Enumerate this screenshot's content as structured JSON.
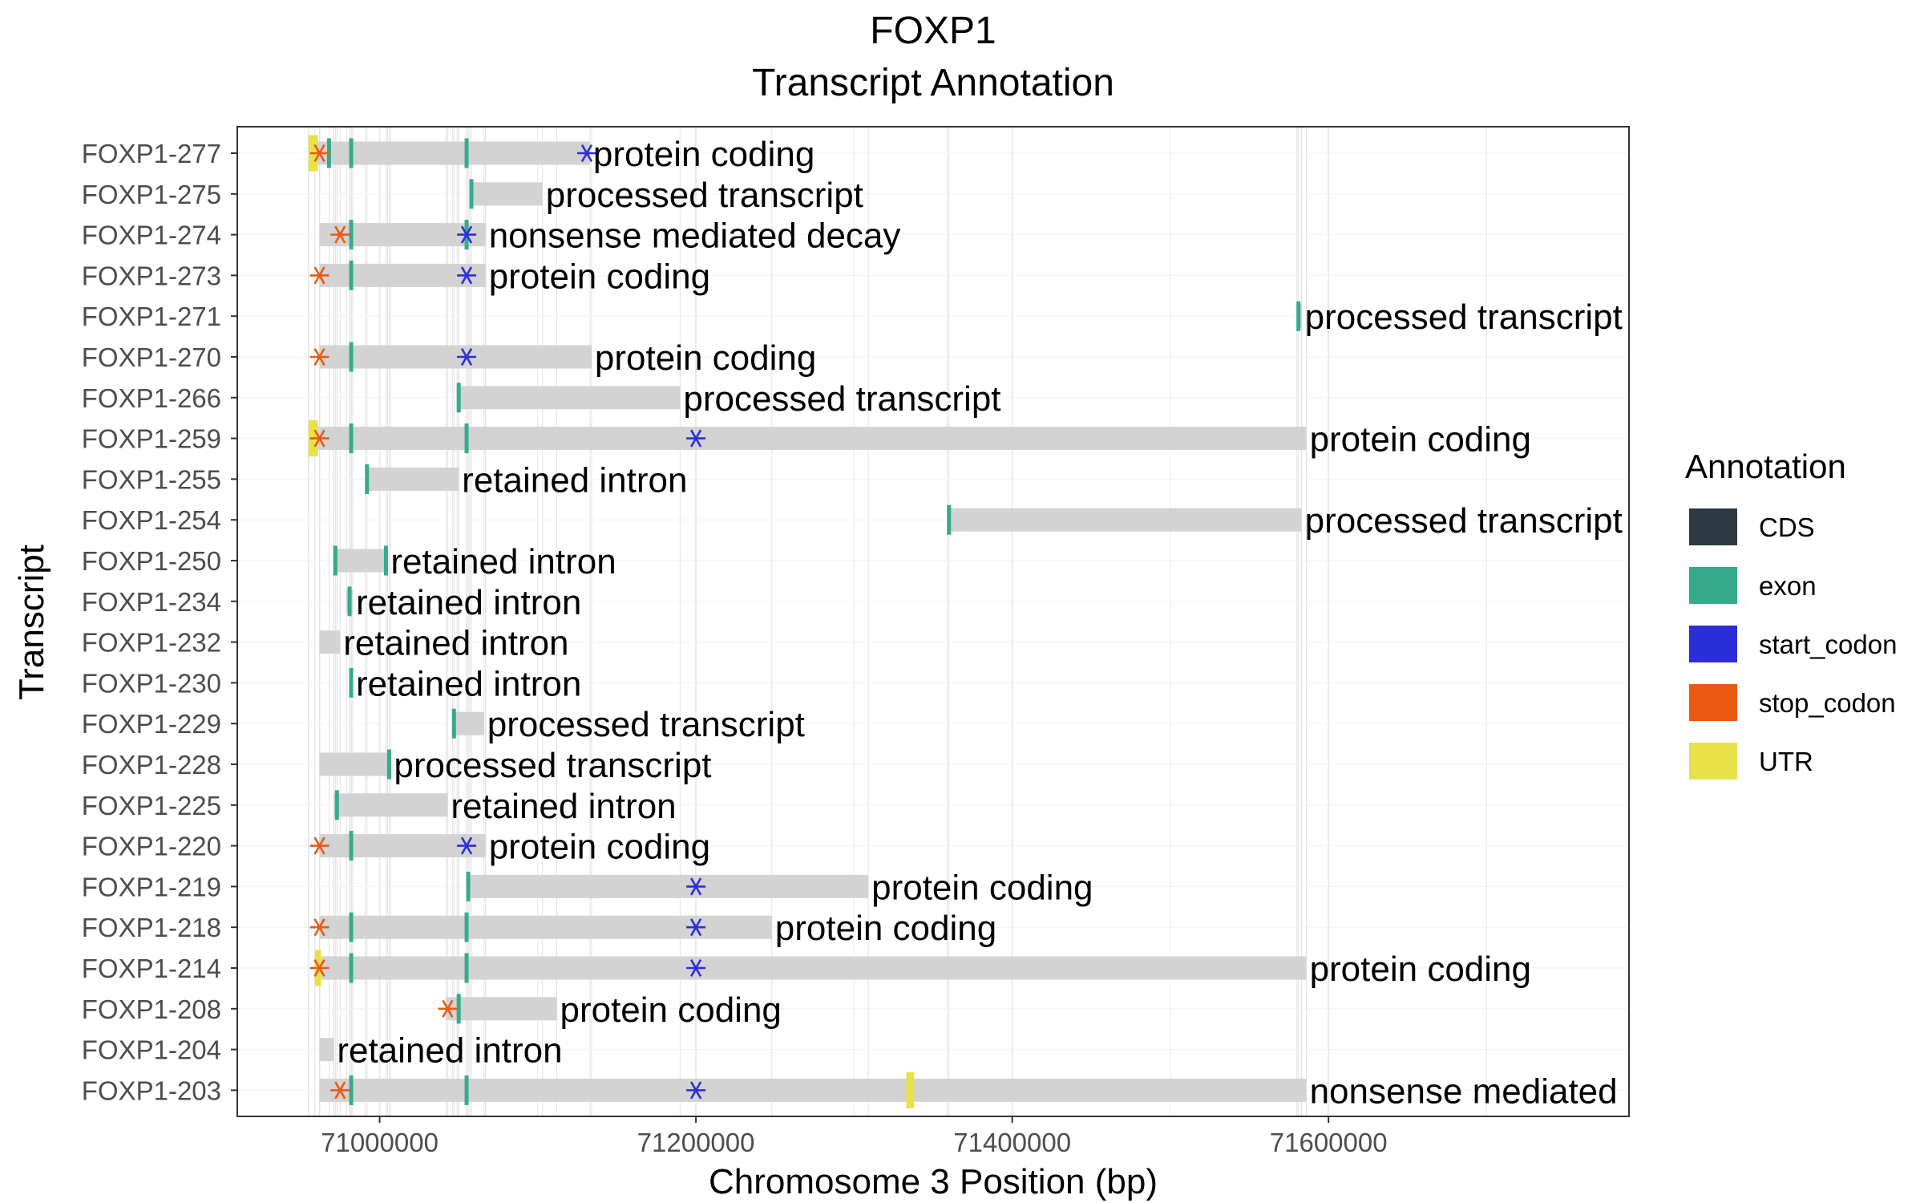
{
  "chart_data": {
    "type": "gantt",
    "title": "FOXP1",
    "subtitle": "Transcript Annotation",
    "xlabel": "Chromosome 3 Position (bp)",
    "ylabel": "Transcript",
    "xlim": [
      70910000,
      71790000
    ],
    "xticks": [
      71000000,
      71200000,
      71400000,
      71600000
    ],
    "grid": true,
    "legend": {
      "title": "Annotation",
      "placement": "right",
      "items": [
        {
          "label": "CDS",
          "color": "#2d3a44"
        },
        {
          "label": "exon",
          "color": "#35ab8c"
        },
        {
          "label": "start_codon",
          "color": "#2b2fd9"
        },
        {
          "label": "stop_codon",
          "color": "#ea5a12"
        },
        {
          "label": "UTR",
          "color": "#e8e24a"
        }
      ]
    },
    "span_color": "#d3d3d3",
    "transcripts": [
      {
        "name": "FOXP1-277",
        "start": 70955000,
        "end": 71133000,
        "label": "protein coding",
        "stop_codon": 70962000,
        "start_codon": 71131000,
        "utr": [
          [
            70955000,
            70961000
          ]
        ],
        "exons": [
          70968000,
          70982000,
          71055000
        ]
      },
      {
        "name": "FOXP1-275",
        "start": 71057000,
        "end": 71103000,
        "label": "processed transcript",
        "exons": [
          71058000
        ]
      },
      {
        "name": "FOXP1-274",
        "start": 70962000,
        "end": 71067000,
        "label": "nonsense mediated decay",
        "stop_codon": 70975000,
        "start_codon": 71055000,
        "exons": [
          70982000,
          71055000
        ]
      },
      {
        "name": "FOXP1-273",
        "start": 70962000,
        "end": 71067000,
        "label": "protein coding",
        "stop_codon": 70962000,
        "start_codon": 71055000,
        "exons": [
          70982000
        ]
      },
      {
        "name": "FOXP1-271",
        "start": 71580000,
        "end": 71583000,
        "label": "processed transcript",
        "exons": [
          71581000
        ]
      },
      {
        "name": "FOXP1-270",
        "start": 70962000,
        "end": 71134000,
        "label": "protein coding",
        "stop_codon": 70962000,
        "start_codon": 71055000,
        "exons": [
          70982000
        ]
      },
      {
        "name": "FOXP1-266",
        "start": 71049000,
        "end": 71190000,
        "label": "processed transcript",
        "exons": [
          71050000
        ]
      },
      {
        "name": "FOXP1-259",
        "start": 70955000,
        "end": 71586000,
        "label": "protein coding",
        "stop_codon": 70962000,
        "start_codon": 71200000,
        "utr": [
          [
            70955000,
            70961000
          ]
        ],
        "exons": [
          70982000,
          71055000
        ]
      },
      {
        "name": "FOXP1-255",
        "start": 70991000,
        "end": 71050000,
        "label": "retained intron",
        "exons": [
          70992000
        ]
      },
      {
        "name": "FOXP1-254",
        "start": 71359000,
        "end": 71583000,
        "label": "processed transcript",
        "exons": [
          71360000
        ]
      },
      {
        "name": "FOXP1-250",
        "start": 70971000,
        "end": 71005000,
        "label": "retained intron",
        "exons": [
          70972000,
          71004000
        ]
      },
      {
        "name": "FOXP1-234",
        "start": 70979000,
        "end": 70983000,
        "label": "retained intron",
        "exons": [
          70981000
        ]
      },
      {
        "name": "FOXP1-232",
        "start": 70962000,
        "end": 70975000,
        "label": "retained intron",
        "exons": []
      },
      {
        "name": "FOXP1-230",
        "start": 70981000,
        "end": 70983000,
        "label": "retained intron",
        "exons": [
          70982000
        ]
      },
      {
        "name": "FOXP1-229",
        "start": 71046000,
        "end": 71066000,
        "label": "processed transcript",
        "exons": [
          71047000
        ]
      },
      {
        "name": "FOXP1-228",
        "start": 70962000,
        "end": 71007000,
        "label": "processed transcript",
        "exons": [
          71006000
        ]
      },
      {
        "name": "FOXP1-225",
        "start": 70971000,
        "end": 71043000,
        "label": "retained intron",
        "exons": [
          70973000
        ]
      },
      {
        "name": "FOXP1-220",
        "start": 70962000,
        "end": 71067000,
        "label": "protein coding",
        "stop_codon": 70962000,
        "start_codon": 71055000,
        "exons": [
          70982000
        ]
      },
      {
        "name": "FOXP1-219",
        "start": 71055000,
        "end": 71309000,
        "label": "protein coding",
        "start_codon": 71200000,
        "exons": [
          71056000
        ]
      },
      {
        "name": "FOXP1-218",
        "start": 70962000,
        "end": 71248000,
        "label": "protein coding",
        "stop_codon": 70962000,
        "start_codon": 71200000,
        "exons": [
          70982000,
          71055000
        ]
      },
      {
        "name": "FOXP1-214",
        "start": 70959000,
        "end": 71586000,
        "label": "protein coding",
        "stop_codon": 70962000,
        "start_codon": 71200000,
        "utr": [
          [
            70959000,
            70962000
          ]
        ],
        "exons": [
          70982000,
          71055000
        ]
      },
      {
        "name": "FOXP1-208",
        "start": 71042000,
        "end": 71112000,
        "label": "protein coding",
        "stop_codon": 71043000,
        "exons": [
          71050000
        ]
      },
      {
        "name": "FOXP1-204",
        "start": 70962000,
        "end": 70971000,
        "label": "retained intron",
        "exons": []
      },
      {
        "name": "FOXP1-203",
        "start": 70962000,
        "end": 71586000,
        "label": "nonsense mediated decay",
        "stop_codon": 70975000,
        "start_codon": 71200000,
        "utr": [
          [
            71333000,
            71338000
          ]
        ],
        "exons": [
          70982000,
          71055000
        ]
      }
    ]
  }
}
